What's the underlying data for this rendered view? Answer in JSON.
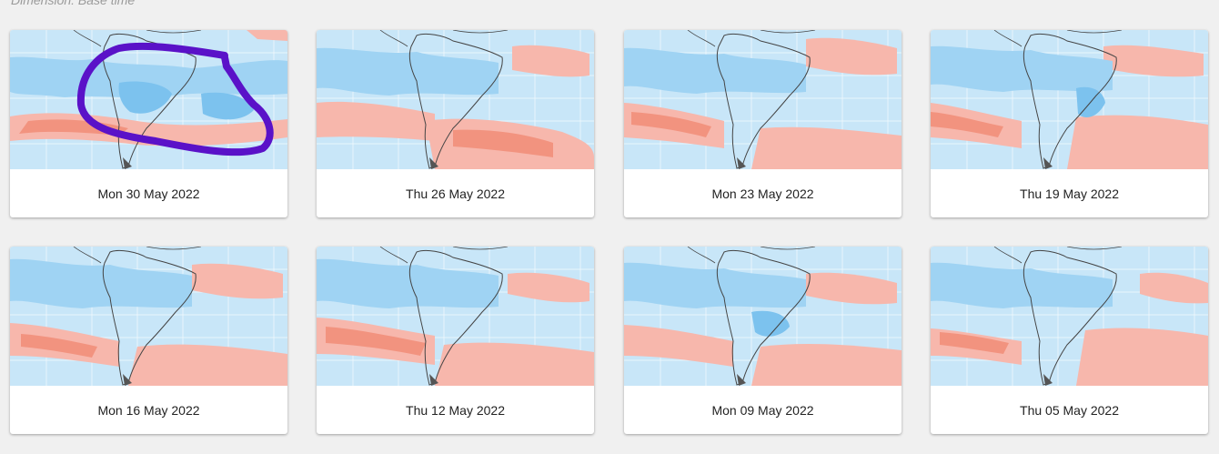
{
  "header": {
    "dimension_label": "Dimension: Base time"
  },
  "cards": [
    {
      "label": "Mon 30 May 2022",
      "map_icon": "anomaly-map"
    },
    {
      "label": "Thu 26 May 2022",
      "map_icon": "anomaly-map"
    },
    {
      "label": "Mon 23 May 2022",
      "map_icon": "anomaly-map"
    },
    {
      "label": "Thu 19 May 2022",
      "map_icon": "anomaly-map"
    },
    {
      "label": "Mon 16 May 2022",
      "map_icon": "anomaly-map"
    },
    {
      "label": "Thu 12 May 2022",
      "map_icon": "anomaly-map"
    },
    {
      "label": "Mon 09 May 2022",
      "map_icon": "anomaly-map"
    },
    {
      "label": "Thu 05 May 2022",
      "map_icon": "anomaly-map"
    }
  ],
  "colors": {
    "ocean": "#c8e6f8",
    "cold": "#9fd3f3",
    "cold_strong": "#7cc2ee",
    "warm": "#f7b7ac",
    "warm_strong": "#f2937f",
    "annotation": "#5a12c8"
  }
}
